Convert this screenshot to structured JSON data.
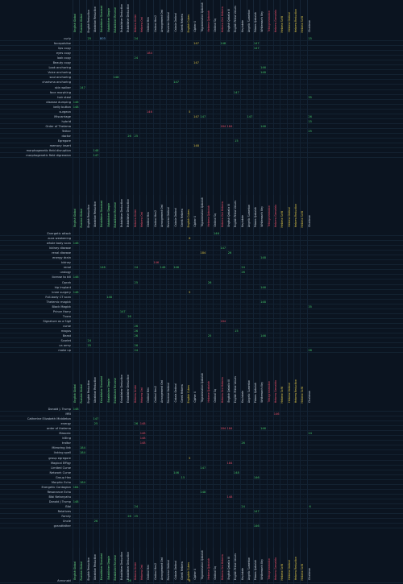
{
  "columns": [
    {
      "name": "English Global",
      "color": "#6fe08a"
    },
    {
      "name": "Russian Global",
      "color": "#6fe08a"
    },
    {
      "name": "English Reduction",
      "color": "#c8d4e0"
    },
    {
      "name": "Ukrainian Reduction",
      "color": "#c8d4e0"
    },
    {
      "name": "Establisher Standard",
      "color": "#6fe08a"
    },
    {
      "name": "Establisher Simple",
      "color": "#6fe08a"
    },
    {
      "name": "Establisher Reverse",
      "color": "#6fe08a"
    },
    {
      "name": "Establisher Deduction",
      "color": "#c8d4e0"
    },
    {
      "name": "Establisher Deduction",
      "color": "#c8d4e0"
    },
    {
      "name": "Hebrew Order",
      "color": "#e0506a"
    },
    {
      "name": "Hebrew Ord",
      "color": "#e0506a"
    },
    {
      "name": "Ordinal Hex",
      "color": "#c8d4e0"
    },
    {
      "name": "Ordinal Hex2",
      "color": "#c8d4e0"
    },
    {
      "name": "Arrangement Ord",
      "color": "#c8d4e0"
    },
    {
      "name": "Reverse Ordinal",
      "color": "#c8d4e0"
    },
    {
      "name": "Cabala Ordinal",
      "color": "#c8d4e0"
    },
    {
      "name": "Greek Hebrew",
      "color": "#c8d4e0"
    },
    {
      "name": "English Cubes",
      "color": "#d8c24a"
    },
    {
      "name": "Cipher X",
      "color": "#c8d4e0"
    },
    {
      "name": "Trigrammaton Qabalah",
      "color": "#c8d4e0"
    },
    {
      "name": "Hebrew Qabalah",
      "color": "#e0506a"
    },
    {
      "name": "Ordinal Sq",
      "color": "#c8d4e0"
    },
    {
      "name": "Hebrew Ord Hebrew",
      "color": "#e0506a"
    },
    {
      "name": "English Qaballa III",
      "color": "#c8d4e0"
    },
    {
      "name": "English Prime Values",
      "color": "#c8d4e0"
    },
    {
      "name": "Keylabrie",
      "color": "#c8d4e0"
    },
    {
      "name": "Angelic Sumerian",
      "color": "#c8d4e0"
    },
    {
      "name": "Primes Qabalah",
      "color": "#c8d4e0"
    },
    {
      "name": "Whiteman's Key",
      "color": "#c8d4e0"
    },
    {
      "name": "Tetragrammaton",
      "color": "#e0506a"
    },
    {
      "name": "Hebrew Gematria",
      "color": "#e0506a"
    },
    {
      "name": "Hebrew Sofit",
      "color": "#d8c24a"
    },
    {
      "name": "Hebrew Ordinal",
      "color": "#d8c24a"
    },
    {
      "name": "Hebrew Reduction",
      "color": "#d8c24a"
    },
    {
      "name": "Hebrew Sofit",
      "color": "#d8c24a"
    },
    {
      "name": "Chaldean",
      "color": "#c8d4e0"
    }
  ],
  "header_rows": [
    0,
    49,
    117,
    185
  ],
  "blocks": [
    {
      "start": 1,
      "rows": [
        {
          "label": "curly",
          "hits": {
            "2": [
              "25",
              "green"
            ],
            "4": [
              "803",
              "blue"
            ],
            "9": [
              "24",
              "green"
            ],
            "35": [
              "15",
              "green"
            ]
          }
        },
        {
          "label": "facepalsiise",
          "hits": {
            "18": [
              "147",
              "yellow"
            ],
            "22": [
              "148",
              "green"
            ],
            "27": [
              "147",
              "green"
            ]
          }
        },
        {
          "label": "lips copy",
          "hits": {
            "27": [
              "147",
              "green"
            ]
          }
        },
        {
          "label": "eyes copy",
          "hits": {
            "11": [
              "184",
              "red"
            ]
          }
        },
        {
          "label": "look copy",
          "hits": {
            "9": [
              "24",
              "green"
            ]
          }
        },
        {
          "label": "Beauty copy",
          "hits": {
            "18": [
              "147",
              "yellow"
            ]
          }
        },
        {
          "label": "Look anchoring",
          "hits": {
            "28": [
              "146",
              "green"
            ]
          }
        },
        {
          "label": "Voice anchoring",
          "hits": {
            "28": [
              "148",
              "green"
            ]
          }
        },
        {
          "label": "soul anchoring",
          "hits": {
            "6": [
              "148",
              "green"
            ]
          }
        },
        {
          "label": "charisma anchoring",
          "hits": {
            "15": [
              "147",
              "green"
            ]
          }
        },
        {
          "label": "skin walker",
          "hits": {
            "1": [
              "147",
              "green"
            ]
          }
        },
        {
          "label": "face morphing",
          "hits": {
            "24": [
              "147",
              "green"
            ]
          }
        },
        {
          "label": "hair steal",
          "hits": {
            "35": [
              "35",
              "green"
            ]
          }
        },
        {
          "label": "disease dumping",
          "hits": {
            "0": [
              "146",
              "green"
            ]
          }
        },
        {
          "label": "belly button",
          "hits": {
            "0": [
              "148",
              "green"
            ]
          }
        },
        {
          "label": "surgeon",
          "hits": {
            "11": [
              "146",
              "red"
            ],
            "17": [
              "5",
              "yellow"
            ]
          }
        },
        {
          "label": "Miscarriage",
          "hits": {
            "18": [
              "147",
              "yellow"
            ],
            "19": [
              "147",
              "green"
            ],
            "26": [
              "147",
              "green"
            ],
            "35": [
              "26",
              "green"
            ]
          }
        },
        {
          "label": "hybrid",
          "hits": {
            "35": [
              "15",
              "green"
            ]
          }
        },
        {
          "label": "Order of Thelema",
          "hits": {
            "22": [
              "184",
              "red"
            ],
            "23": [
              "184",
              "red"
            ],
            "28": [
              "146",
              "green"
            ]
          }
        },
        {
          "label": "Tether",
          "hits": {
            "35": [
              "25",
              "green"
            ]
          }
        },
        {
          "label": "doctor",
          "hits": {
            "8": [
              "26",
              "green"
            ],
            "9": [
              "25",
              "green"
            ]
          }
        },
        {
          "label": "Egregore",
          "hits": {
            "24": [
              "15",
              "green"
            ]
          }
        },
        {
          "label": "memory insert",
          "hits": {
            "18": [
              "148",
              "yellow"
            ]
          }
        },
        {
          "label": "morphogenetic field disruption",
          "hits": {
            "3": [
              "148",
              "green"
            ]
          }
        },
        {
          "label": "morphogenetic field digression",
          "hits": {
            "3": [
              "147",
              "green"
            ]
          }
        }
      ]
    },
    {
      "start": 50,
      "rows": [
        {
          "label": "Energetic attack",
          "hits": {
            "21": [
              "146",
              "green"
            ]
          }
        },
        {
          "label": "aura weakening",
          "hits": {
            "17": [
              "6",
              "yellow"
            ]
          }
        },
        {
          "label": "whole body scan",
          "hits": {
            "0": [
              "146",
              "green"
            ]
          }
        },
        {
          "label": "kidney disease",
          "hits": {
            "22": [
              "147",
              "green"
            ]
          }
        },
        {
          "label": "renal disease",
          "hits": {
            "19": [
              "184",
              "yellow"
            ],
            "23": [
              "26",
              "green"
            ]
          }
        },
        {
          "label": "energy drain",
          "hits": {
            "28": [
              "148",
              "green"
            ]
          }
        },
        {
          "label": "kidney",
          "hits": {
            "12": [
              "146",
              "red"
            ]
          }
        },
        {
          "label": "renal",
          "hits": {
            "4": [
              "146",
              "green"
            ],
            "9": [
              "24",
              "green"
            ],
            "13": [
              "146",
              "green"
            ],
            "15": [
              "146",
              "green"
            ],
            "25": [
              "24",
              "green"
            ]
          }
        },
        {
          "label": "urology",
          "hits": {
            "25": [
              "26",
              "green"
            ]
          }
        },
        {
          "label": "license to kill",
          "hits": {
            "0": [
              "146",
              "green"
            ]
          }
        },
        {
          "label": "Oprah",
          "hits": {
            "9": [
              "25",
              "green"
            ],
            "20": [
              "26",
              "green"
            ]
          }
        },
        {
          "label": "hip implant",
          "hits": {
            "28": [
              "146",
              "green"
            ]
          }
        },
        {
          "label": "knee surgery",
          "hits": {
            "0": [
              "148",
              "green"
            ],
            "17": [
              "5",
              "yellow"
            ]
          }
        },
        {
          "label": "Full-body CT scan",
          "hits": {
            "5": [
              "148",
              "green"
            ]
          }
        },
        {
          "label": "Thelemic magick",
          "hits": {
            "28": [
              "148",
              "green"
            ]
          }
        },
        {
          "label": "Black Magick",
          "hits": {
            "35": [
              "35",
              "green"
            ]
          }
        },
        {
          "label": "Prince Harry",
          "hits": {
            "7": [
              "147",
              "green"
            ]
          }
        },
        {
          "label": "Tvoro",
          "hits": {
            "8": [
              "26",
              "green"
            ]
          }
        },
        {
          "label": "Signature as a Sigil",
          "hits": {
            "22": [
              "184",
              "red"
            ]
          }
        },
        {
          "label": "curse",
          "hits": {
            "9": [
              "26",
              "green"
            ]
          }
        },
        {
          "label": "magus",
          "hits": {
            "9": [
              "26",
              "green"
            ],
            "24": [
              "15",
              "green"
            ]
          }
        },
        {
          "label": "Beast",
          "hits": {
            "9": [
              "26",
              "green"
            ],
            "20": [
              "25",
              "green"
            ],
            "28": [
              "146",
              "green"
            ]
          }
        },
        {
          "label": "Scarlet",
          "hits": {
            "2": [
              "24",
              "green"
            ]
          }
        },
        {
          "label": "ca army",
          "hits": {
            "2": [
              "25",
              "green"
            ],
            "9": [
              "26",
              "green"
            ]
          }
        },
        {
          "label": "make up",
          "hits": {
            "9": [
              "24",
              "green"
            ],
            "35": [
              "26",
              "green"
            ]
          }
        }
      ]
    },
    {
      "start": 118,
      "rows": [
        {
          "label": "Donald J. Trump",
          "hits": {
            "0": [
              "148",
              "green"
            ]
          }
        },
        {
          "label": "MRI",
          "hits": {
            "30": [
              "146",
              "red"
            ]
          }
        },
        {
          "label": "Catherine Elizabeth Middleton",
          "hits": {
            "3": [
              "147",
              "green"
            ]
          }
        },
        {
          "label": "energy",
          "hits": {
            "3": [
              "25",
              "green"
            ],
            "9": [
              "26",
              "green"
            ],
            "10": [
              "148",
              "red"
            ]
          }
        },
        {
          "label": "order of thelema",
          "hits": {
            "22": [
              "184",
              "red"
            ],
            "23": [
              "184",
              "red"
            ],
            "28": [
              "146",
              "green"
            ]
          }
        },
        {
          "label": "Masonic",
          "hits": {
            "10": [
              "148",
              "red"
            ],
            "35": [
              "24",
              "green"
            ]
          }
        },
        {
          "label": "killing",
          "hits": {
            "10": [
              "148",
              "red"
            ]
          }
        },
        {
          "label": "traitor",
          "hits": {
            "10": [
              "148",
              "red"
            ],
            "25": [
              "26",
              "green"
            ]
          }
        },
        {
          "label": "Mirroring link",
          "hits": {
            "1": [
              "184",
              "green"
            ]
          }
        },
        {
          "label": "linking spell",
          "hits": {
            "1": [
              "184",
              "green"
            ]
          }
        },
        {
          "label": "group egregore",
          "hits": {
            "17": [
              "5",
              "yellow"
            ]
          }
        },
        {
          "label": "Magical Effigy",
          "hits": {
            "23": [
              "184",
              "red"
            ]
          }
        },
        {
          "label": "Limited Curse",
          "hits": {
            "19": [
              "147",
              "green"
            ]
          }
        },
        {
          "label": "Network Curse",
          "hits": {
            "15": [
              "146",
              "green"
            ],
            "24": [
              "148",
              "green"
            ]
          }
        },
        {
          "label": "Group Hex",
          "hits": {
            "16": [
              "15",
              "green"
            ],
            "27": [
              "146",
              "green"
            ]
          }
        },
        {
          "label": "Morphic Echo",
          "hits": {
            "1": [
              "184",
              "green"
            ]
          }
        },
        {
          "label": "Energetic Contagion",
          "hits": {
            "0": [
              "184",
              "green"
            ]
          }
        },
        {
          "label": "Resonance Echo",
          "hits": {
            "19": [
              "148",
              "green"
            ]
          }
        },
        {
          "label": "Bibi Netanyahu",
          "hits": {
            "23": [
              "148",
              "red"
            ]
          }
        },
        {
          "label": "Donald J Trump",
          "hits": {
            "0": [
              "148",
              "green"
            ]
          }
        },
        {
          "label": "Bibi",
          "hits": {
            "9": [
              "24",
              "green"
            ],
            "25": [
              "24",
              "green"
            ],
            "35": [
              "6",
              "green"
            ]
          }
        },
        {
          "label": "Relatives",
          "hits": {
            "27": [
              "147",
              "green"
            ]
          }
        },
        {
          "label": "Family",
          "hits": {
            "8": [
              "26",
              "green"
            ],
            "9": [
              "25",
              "green"
            ]
          }
        },
        {
          "label": "Uncle",
          "hits": {
            "3": [
              "26",
              "green"
            ]
          }
        },
        {
          "label": "grandfather",
          "hits": {
            "27": [
              "146",
              "green"
            ]
          }
        }
      ]
    },
    {
      "start": 186,
      "rows": [
        {
          "label": "Annunaki",
          "hits": {
            "8": [
              "26",
              "green"
            ],
            "17": [
              "6",
              "yellow"
            ]
          }
        }
      ]
    }
  ]
}
